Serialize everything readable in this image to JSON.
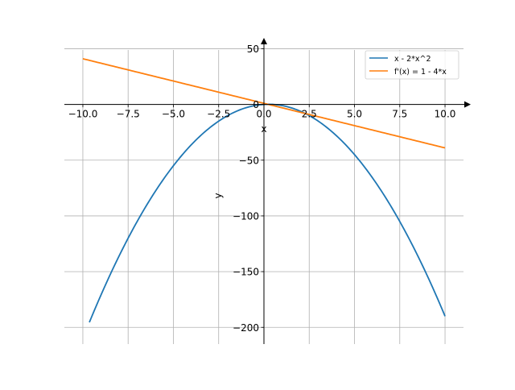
{
  "chart_data": {
    "type": "line",
    "title": "",
    "xlabel": "x",
    "ylabel": "y",
    "xlim": [
      -11.02,
      11.02
    ],
    "ylim": [
      -215,
      59
    ],
    "grid": true,
    "legend_position": "top-right",
    "xticks": [
      -10.0,
      -7.5,
      -5.0,
      -2.5,
      0.0,
      2.5,
      5.0,
      7.5,
      10.0
    ],
    "xtick_labels": [
      "−10.0",
      "−7.5",
      "−5.0",
      "−2.5",
      "0.0",
      "2.5",
      "5.0",
      "7.5",
      "10.0"
    ],
    "yticks": [
      50,
      0,
      -50,
      -100,
      -150,
      -200
    ],
    "ytick_labels": [
      "50",
      "0",
      "−50",
      "−100",
      "−150",
      "−200"
    ],
    "series": [
      {
        "name": "x - 2*x^2",
        "color": "#1f77b4",
        "expr": "x - 2*x^2",
        "x_range": [
          -9.64,
          10
        ]
      },
      {
        "name": "f'(x) = 1 - 4*x",
        "color": "#ff7f0e",
        "expr": "1 - 4*x",
        "x_range": [
          -10,
          10
        ]
      }
    ]
  }
}
